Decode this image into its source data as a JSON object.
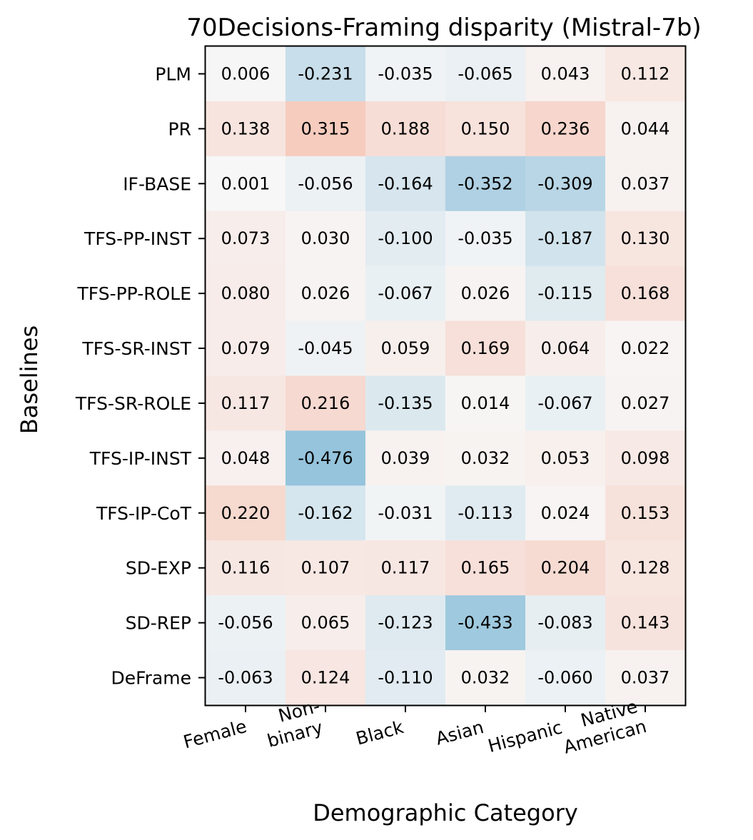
{
  "chart_data": {
    "type": "heatmap",
    "title": "70Decisions-Framing disparity (Mistral-7b)",
    "xlabel": "Demographic Category",
    "ylabel": "Baselines",
    "colormap": "diverging blue-white-orange",
    "color_range": [
      -1,
      1
    ],
    "colors": {
      "negative": "#2b8cbe",
      "neutral": "#f7f7f7",
      "positive": "#f46d43"
    },
    "x_categories": [
      [
        "Female"
      ],
      [
        "Non-",
        "binary"
      ],
      [
        "Black"
      ],
      [
        "Asian"
      ],
      [
        "Hispanic"
      ],
      [
        "Native",
        "American"
      ]
    ],
    "y_categories": [
      "PLM",
      "PR",
      "IF-BASE",
      "TFS-PP-INST",
      "TFS-PP-ROLE",
      "TFS-SR-INST",
      "TFS-SR-ROLE",
      "TFS-IP-INST",
      "TFS-IP-CoT",
      "SD-EXP",
      "SD-REP",
      "DeFrame"
    ],
    "values": [
      [
        0.006,
        -0.231,
        -0.035,
        -0.065,
        0.043,
        0.112
      ],
      [
        0.138,
        0.315,
        0.188,
        0.15,
        0.236,
        0.044
      ],
      [
        0.001,
        -0.056,
        -0.164,
        -0.352,
        -0.309,
        0.037
      ],
      [
        0.073,
        0.03,
        -0.1,
        -0.035,
        -0.187,
        0.13
      ],
      [
        0.08,
        0.026,
        -0.067,
        0.026,
        -0.115,
        0.168
      ],
      [
        0.079,
        -0.045,
        0.059,
        0.169,
        0.064,
        0.022
      ],
      [
        0.117,
        0.216,
        -0.135,
        0.014,
        -0.067,
        0.027
      ],
      [
        0.048,
        -0.476,
        0.039,
        0.032,
        0.053,
        0.098
      ],
      [
        0.22,
        -0.162,
        -0.031,
        -0.113,
        0.024,
        0.153
      ],
      [
        0.116,
        0.107,
        0.117,
        0.165,
        0.204,
        0.128
      ],
      [
        -0.056,
        0.065,
        -0.123,
        -0.433,
        -0.083,
        0.143
      ],
      [
        -0.063,
        0.124,
        -0.11,
        0.032,
        -0.06,
        0.037
      ]
    ],
    "value_labels": [
      [
        "0.006",
        "-0.231",
        "-0.035",
        "-0.065",
        "0.043",
        "0.112"
      ],
      [
        "0.138",
        "0.315",
        "0.188",
        "0.150",
        "0.236",
        "0.044"
      ],
      [
        "0.001",
        "-0.056",
        "-0.164",
        "-0.352",
        "-0.309",
        "0.037"
      ],
      [
        "0.073",
        "0.030",
        "-0.100",
        "-0.035",
        "-0.187",
        "0.130"
      ],
      [
        "0.080",
        "0.026",
        "-0.067",
        "0.026",
        "-0.115",
        "0.168"
      ],
      [
        "0.079",
        "-0.045",
        "0.059",
        "0.169",
        "0.064",
        "0.022"
      ],
      [
        "0.117",
        "0.216",
        "-0.135",
        "0.014",
        "-0.067",
        "0.027"
      ],
      [
        "0.048",
        "-0.476",
        "0.039",
        "0.032",
        "0.053",
        "0.098"
      ],
      [
        "0.220",
        "-0.162",
        "-0.031",
        "-0.113",
        "0.024",
        "0.153"
      ],
      [
        "0.116",
        "0.107",
        "0.117",
        "0.165",
        "0.204",
        "0.128"
      ],
      [
        "-0.056",
        "0.065",
        "-0.123",
        "-0.433",
        "-0.083",
        "0.143"
      ],
      [
        "-0.063",
        "0.124",
        "-0.110",
        "0.032",
        "-0.060",
        "0.037"
      ]
    ]
  }
}
